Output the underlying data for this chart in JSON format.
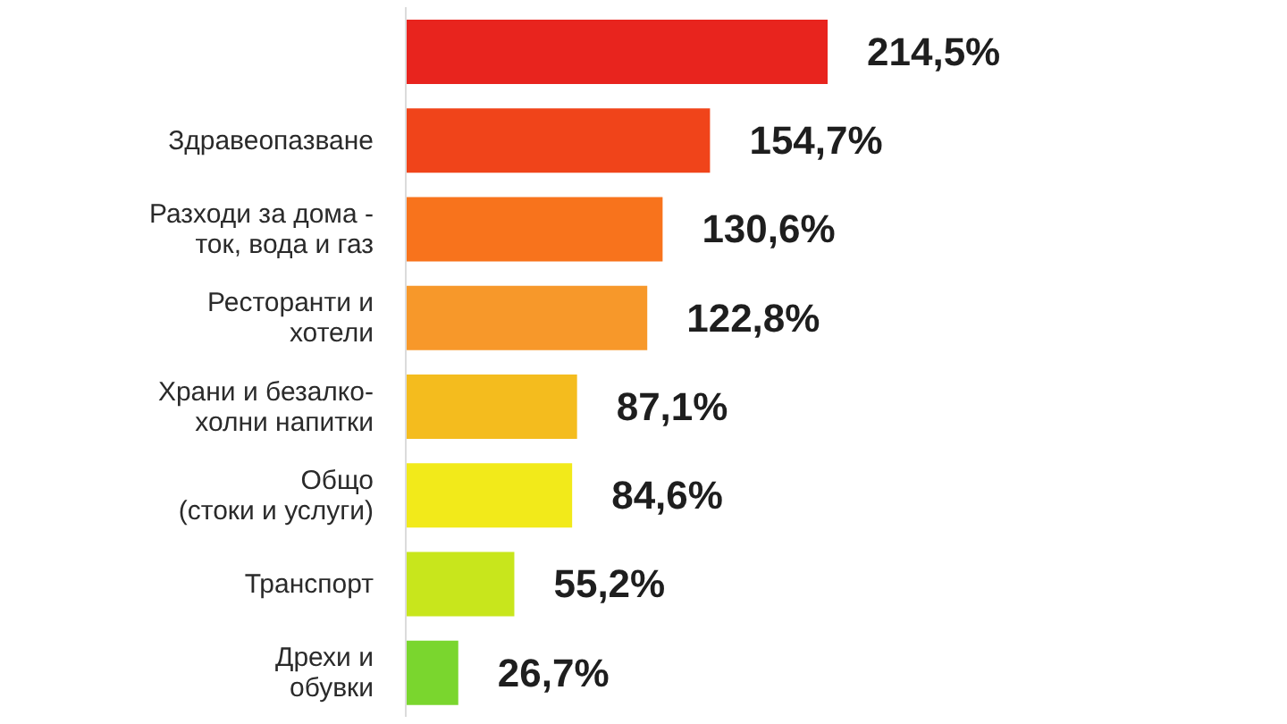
{
  "chart_data": {
    "type": "bar",
    "orientation": "horizontal",
    "categories": [
      null,
      "Здравеопазване",
      "Разходи за дома -\nток, вода и газ",
      "Ресторанти и\nхотели",
      "Храни и безалко-\nхолни напитки",
      "Общо\n(стоки и услуги)",
      "Транспорт",
      "Дрехи и\nобувки"
    ],
    "values": [
      214.5,
      154.7,
      130.6,
      122.8,
      87.1,
      84.6,
      55.2,
      26.7
    ],
    "colors": [
      "#e8241e",
      "#f0441a",
      "#f8731c",
      "#f7982a",
      "#f4bc1e",
      "#f2ea1a",
      "#c8e61c",
      "#7ad62e"
    ],
    "value_labels": [
      "214,5%",
      "154,7%",
      "130,6%",
      "122,8%",
      "87,1%",
      "84,6%",
      "55,2%",
      "26,7%"
    ]
  }
}
